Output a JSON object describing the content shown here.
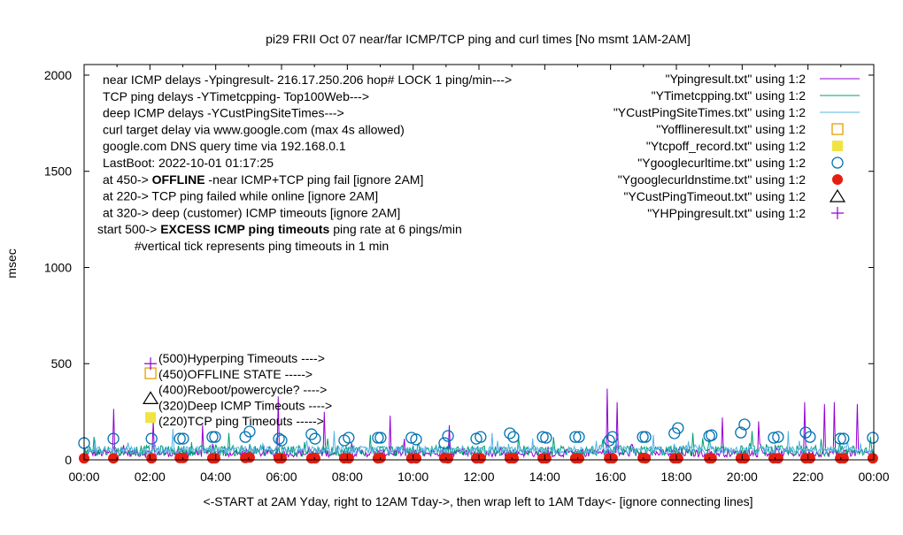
{
  "chart_data": {
    "type": "line",
    "title": "pi29 FRII Oct 07  near/far ICMP/TCP ping and curl times [No msmt 1AM-2AM]",
    "xlabel": "<-START at 2AM Yday, right to 12AM Tday->, then wrap left to 1AM Tday<- [ignore connecting lines]",
    "ylabel": "msec",
    "xlim": [
      0,
      24
    ],
    "ylim": [
      0,
      2055
    ],
    "xticks": [
      "00:00",
      "02:00",
      "04:00",
      "06:00",
      "08:00",
      "10:00",
      "12:00",
      "14:00",
      "16:00",
      "18:00",
      "20:00",
      "22:00",
      "00:00"
    ],
    "yticks": [
      0,
      500,
      1000,
      1500,
      2000
    ],
    "grid": false,
    "legend_position": "top-right",
    "info_lines": [
      {
        "pre": "near ICMP delays -Ypingresult- 216.17.250.206 hop# LOCK 1 ping/min--->",
        "bold": "",
        "post": ""
      },
      {
        "pre": "TCP ping delays -YTimetcpping- Top100Web--->",
        "bold": "",
        "post": ""
      },
      {
        "pre": "deep ICMP delays -YCustPingSiteTimes--->",
        "bold": "",
        "post": ""
      },
      {
        "pre": "curl target delay via www.google.com (max 4s allowed)",
        "bold": "",
        "post": ""
      },
      {
        "pre": "google.com DNS query time via 192.168.0.1",
        "bold": "",
        "post": ""
      },
      {
        "pre": "LastBoot: 2022-10-01 01:17:25",
        "bold": "",
        "post": ""
      },
      {
        "pre": "at 450-> ",
        "bold": "OFFLINE",
        "post": " -near ICMP+TCP ping fail [ignore 2AM]"
      },
      {
        "pre": "at 220-> TCP ping failed while online [ignore 2AM]",
        "bold": "",
        "post": ""
      },
      {
        "pre": "at 320-> deep (customer) ICMP timeouts [ignore 2AM]",
        "bold": "",
        "post": ""
      },
      {
        "pre": "start 500-> ",
        "bold": "EXCESS ICMP ping timeouts",
        "post": "  ping rate at 6 pings/min"
      },
      {
        "pre": "#vertical tick represents ping timeouts in 1 min",
        "bold": "",
        "post": ""
      }
    ],
    "marker_labels": [
      {
        "text": "(500)Hyperping Timeouts ---->",
        "marker": "plus",
        "value": 500
      },
      {
        "text": "(450)OFFLINE STATE ----->",
        "marker": "open-square",
        "value": 450
      },
      {
        "text": "(400)Reboot/powercycle? ---->",
        "marker": "none",
        "value": 400
      },
      {
        "text": "(320)Deep ICMP Timeouts ---->",
        "marker": "triangle",
        "value": 320
      },
      {
        "text": "(220)TCP ping Timeouts ----->",
        "marker": "filled-square",
        "value": 220
      }
    ],
    "series": [
      {
        "name": "\"Ypingresult.txt\" using 1:2",
        "style": "line",
        "color": "#9400d3",
        "noise": [
          15,
          55
        ],
        "spikes": [
          [
            0.9,
            265
          ],
          [
            2.1,
            200
          ],
          [
            3.6,
            180
          ],
          [
            5.9,
            330
          ],
          [
            7.3,
            250
          ],
          [
            9.3,
            230
          ],
          [
            11.1,
            180
          ],
          [
            15.9,
            370
          ],
          [
            16.2,
            300
          ],
          [
            19.4,
            220
          ],
          [
            20.5,
            200
          ],
          [
            21.9,
            300
          ],
          [
            22.5,
            290
          ],
          [
            22.8,
            300
          ],
          [
            23.5,
            290
          ]
        ]
      },
      {
        "name": "\"YTimetcpping.txt\" using 1:2",
        "style": "line",
        "color": "#009e73",
        "noise": [
          20,
          75
        ],
        "spikes": [
          [
            0.3,
            120
          ],
          [
            4.4,
            140
          ],
          [
            8.7,
            130
          ],
          [
            13.2,
            120
          ],
          [
            18.5,
            140
          ],
          [
            20.3,
            150
          ],
          [
            23.9,
            120
          ]
        ]
      },
      {
        "name": "\"YCustPingSiteTimes.txt\" using 1:2",
        "style": "line",
        "color": "#56b4e9",
        "noise": [
          30,
          70
        ],
        "spikes": [
          [
            2.7,
            160
          ],
          [
            7.6,
            150
          ],
          [
            12.4,
            140
          ],
          [
            17.3,
            130
          ],
          [
            21.4,
            150
          ]
        ]
      },
      {
        "name": "\"Yofflineresult.txt\" using 1:2",
        "style": "open-square",
        "color": "#e69f00",
        "points": [
          [
            2.02,
            450
          ]
        ]
      },
      {
        "name": "\"Ytcpoff_record.txt\" using 1:2",
        "style": "filled-square",
        "color": "#f0e442",
        "points": [
          [
            2.02,
            220
          ]
        ]
      },
      {
        "name": "\"Ygooglecurltime.txt\" using 1:2",
        "style": "open-circle",
        "color": "#0072b2",
        "points": [
          [
            0.0,
            87
          ],
          [
            0.89,
            110
          ],
          [
            2.05,
            110
          ],
          [
            2.91,
            110
          ],
          [
            3.01,
            110
          ],
          [
            3.9,
            119
          ],
          [
            3.98,
            119
          ],
          [
            4.9,
            119
          ],
          [
            5.03,
            147
          ],
          [
            5.92,
            110
          ],
          [
            6.0,
            101
          ],
          [
            6.91,
            133
          ],
          [
            7.02,
            110
          ],
          [
            7.91,
            101
          ],
          [
            8.04,
            115
          ],
          [
            8.93,
            115
          ],
          [
            9.01,
            115
          ],
          [
            9.95,
            115
          ],
          [
            10.09,
            106
          ],
          [
            10.95,
            87
          ],
          [
            11.06,
            124
          ],
          [
            11.92,
            110
          ],
          [
            12.05,
            119
          ],
          [
            12.94,
            138
          ],
          [
            13.05,
            119
          ],
          [
            13.94,
            119
          ],
          [
            14.04,
            115
          ],
          [
            14.93,
            119
          ],
          [
            15.04,
            119
          ],
          [
            15.96,
            101
          ],
          [
            16.06,
            119
          ],
          [
            16.98,
            119
          ],
          [
            17.06,
            119
          ],
          [
            17.94,
            138
          ],
          [
            18.05,
            165
          ],
          [
            19.0,
            124
          ],
          [
            19.07,
            128
          ],
          [
            19.96,
            142
          ],
          [
            20.07,
            184
          ],
          [
            20.96,
            115
          ],
          [
            21.09,
            119
          ],
          [
            21.93,
            142
          ],
          [
            22.06,
            119
          ],
          [
            22.98,
            110
          ],
          [
            23.08,
            110
          ],
          [
            23.97,
            115
          ]
        ]
      },
      {
        "name": "\"Ygooglecurldnstime.txt\" using 1:2",
        "style": "filled-circle",
        "color": "#e51e10",
        "points": [
          [
            0.0,
            8
          ],
          [
            0.89,
            8
          ],
          [
            2.05,
            8
          ],
          [
            2.91,
            10
          ],
          [
            3.01,
            10
          ],
          [
            3.9,
            8
          ],
          [
            3.98,
            8
          ],
          [
            4.9,
            10
          ],
          [
            5.03,
            12
          ],
          [
            5.92,
            8
          ],
          [
            6.0,
            8
          ],
          [
            6.91,
            8
          ],
          [
            7.02,
            8
          ],
          [
            7.91,
            8
          ],
          [
            8.04,
            8
          ],
          [
            8.93,
            8
          ],
          [
            9.01,
            10
          ],
          [
            9.95,
            8
          ],
          [
            10.09,
            8
          ],
          [
            10.95,
            10
          ],
          [
            11.06,
            8
          ],
          [
            11.92,
            8
          ],
          [
            12.05,
            8
          ],
          [
            12.94,
            8
          ],
          [
            13.05,
            8
          ],
          [
            13.94,
            8
          ],
          [
            14.04,
            8
          ],
          [
            14.93,
            8
          ],
          [
            15.04,
            8
          ],
          [
            15.96,
            8
          ],
          [
            16.06,
            8
          ],
          [
            16.98,
            10
          ],
          [
            17.06,
            8
          ],
          [
            17.94,
            8
          ],
          [
            18.05,
            8
          ],
          [
            19.0,
            8
          ],
          [
            19.07,
            8
          ],
          [
            19.96,
            8
          ],
          [
            20.07,
            8
          ],
          [
            20.96,
            8
          ],
          [
            21.09,
            8
          ],
          [
            21.93,
            8
          ],
          [
            22.06,
            8
          ],
          [
            22.98,
            8
          ],
          [
            23.08,
            8
          ],
          [
            23.97,
            8
          ]
        ]
      },
      {
        "name": "\"YCustPingTimeout.txt\" using 1:2",
        "style": "triangle",
        "color": "#000000",
        "points": [
          [
            2.02,
            320
          ]
        ]
      },
      {
        "name": "\"YHPpingresult.txt\" using 1:2",
        "style": "plus",
        "color": "#9400d3",
        "points": [
          [
            2.02,
            500
          ]
        ]
      }
    ]
  }
}
